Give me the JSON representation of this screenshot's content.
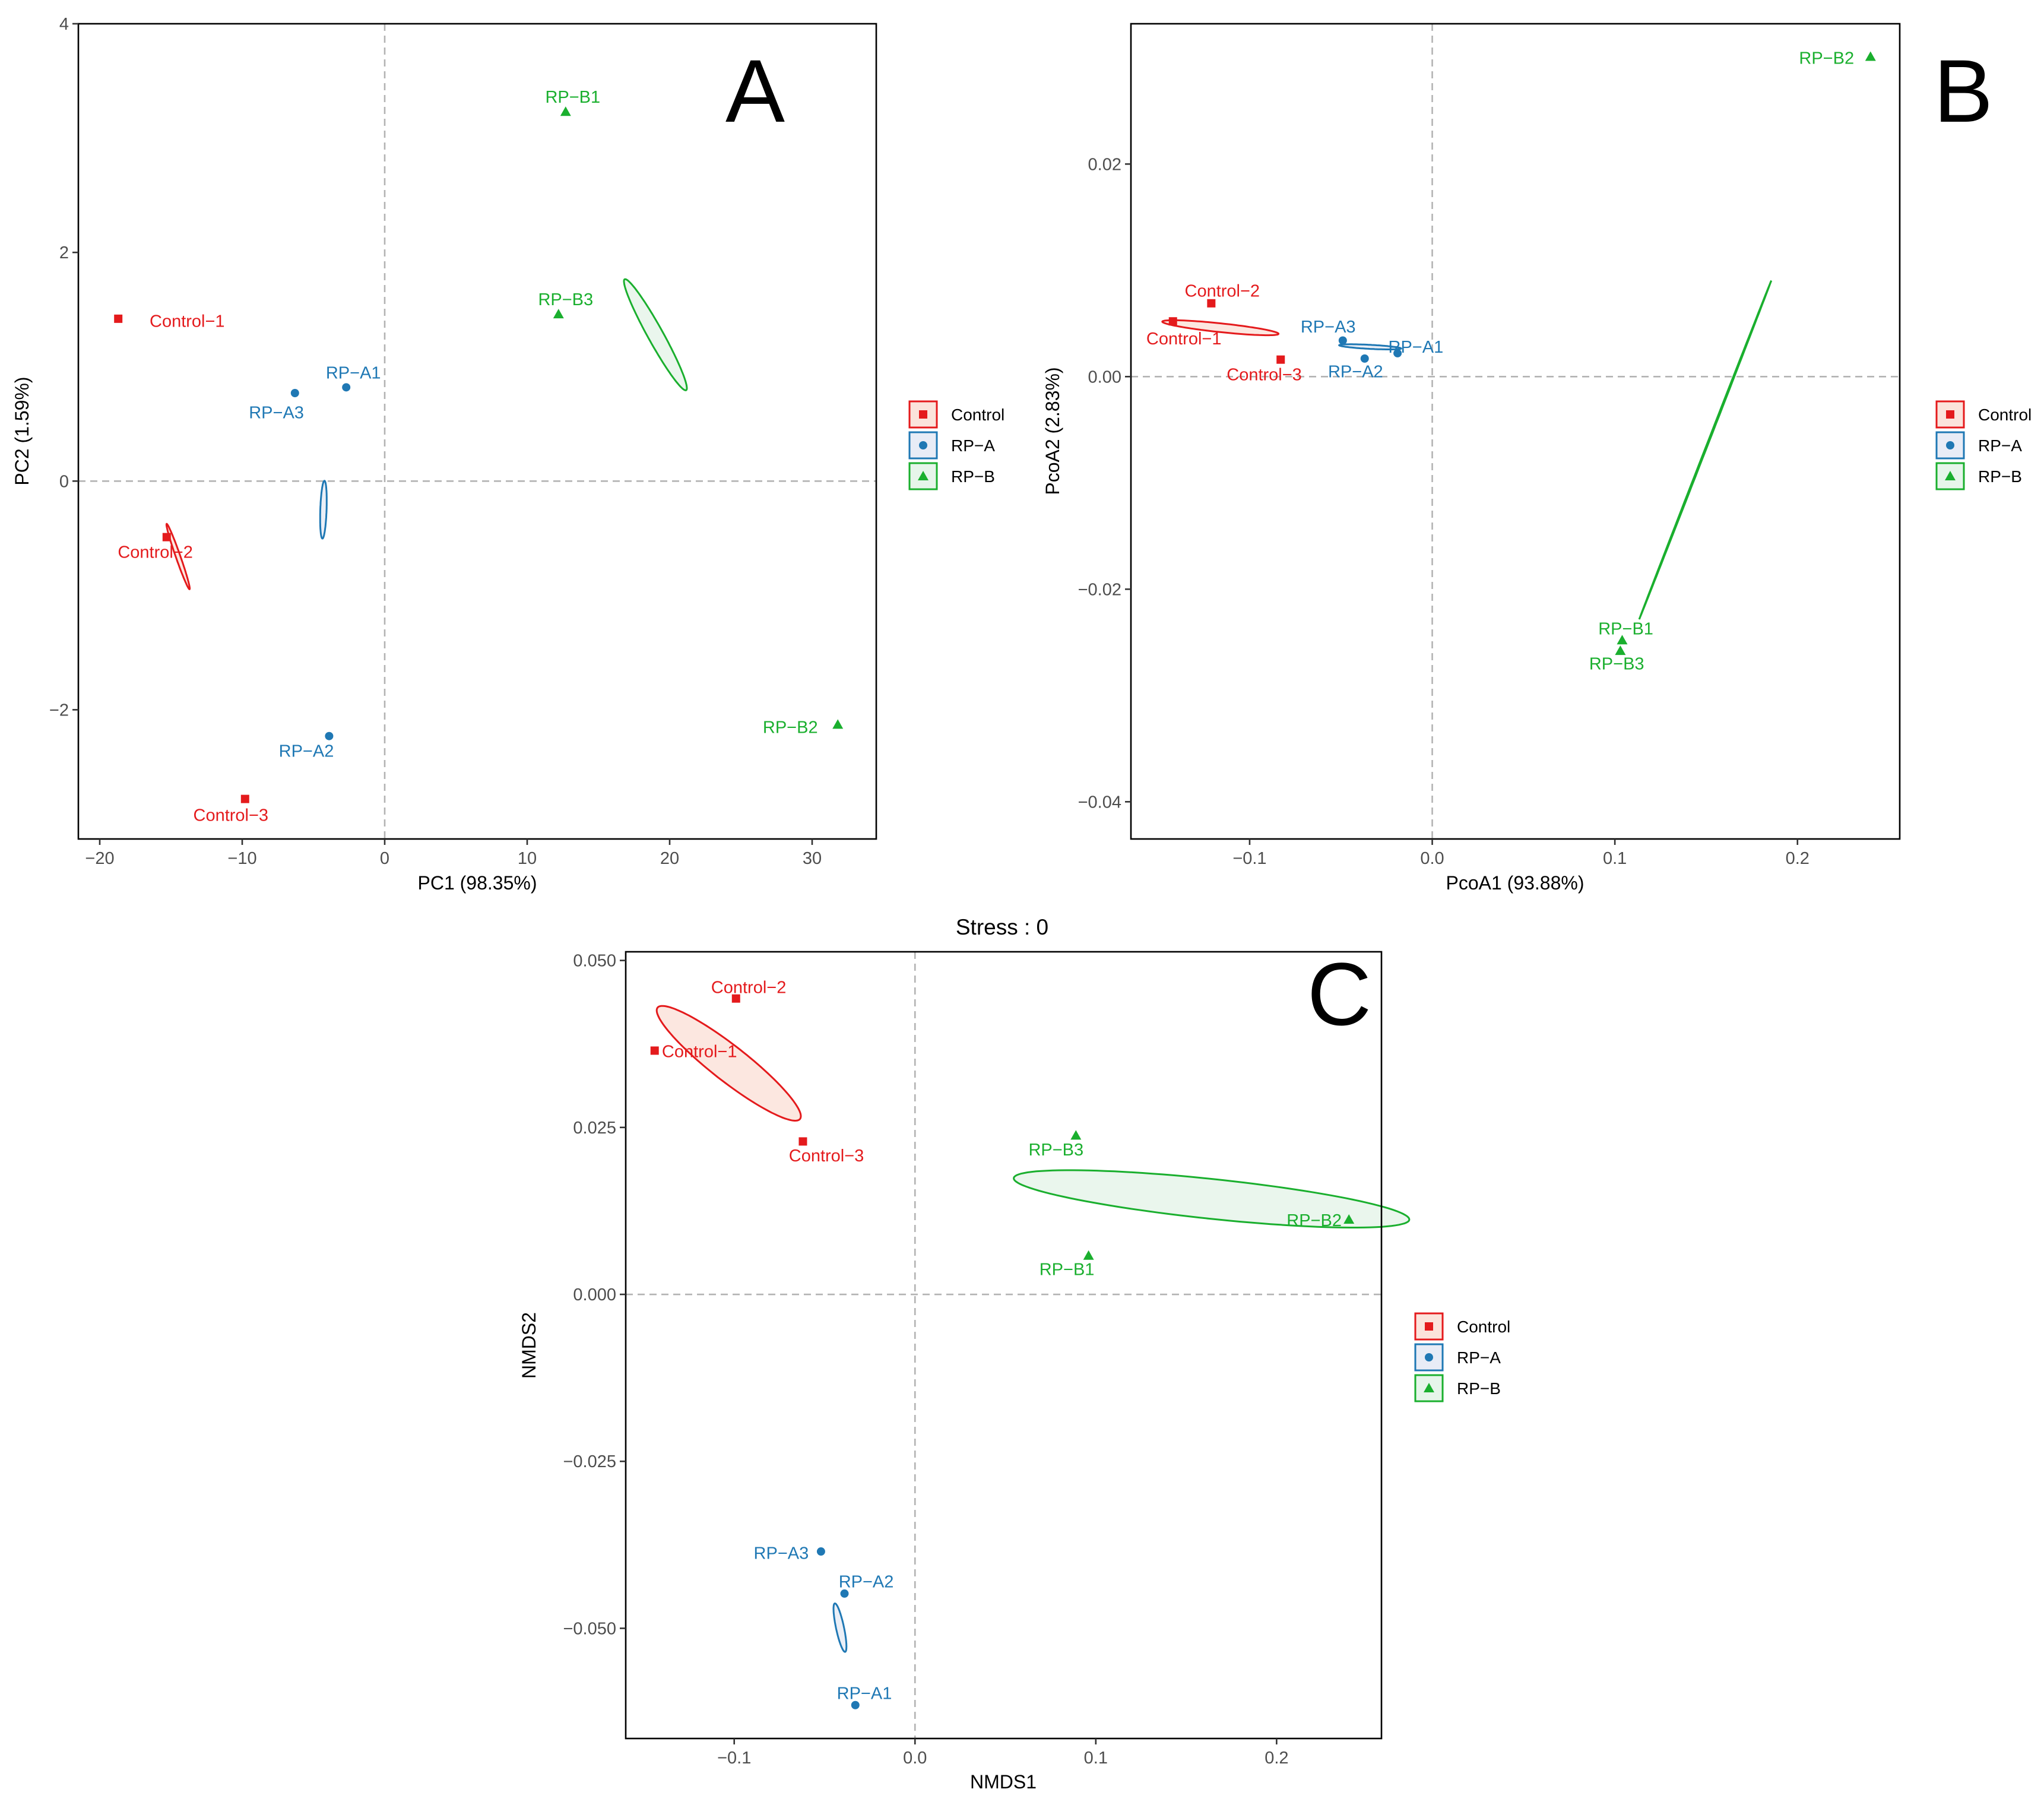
{
  "groups": [
    {
      "key": "Control",
      "label": "Control",
      "color": "#e41a1c",
      "fill": "#fbe3db",
      "marker": "square"
    },
    {
      "key": "RP-A",
      "label": "RP−A",
      "color": "#1f78b4",
      "fill": "#e8ecf6",
      "marker": "circle"
    },
    {
      "key": "RP-B",
      "label": "RP−B",
      "color": "#1aaf2e",
      "fill": "#e6f5ea",
      "marker": "triangle"
    }
  ],
  "chart_data": [
    {
      "type": "scatter",
      "panel": "A",
      "title": "",
      "xlabel": "PC1 (98.35%)",
      "ylabel": "PC2 (1.59%)",
      "xlim": [
        -21.5,
        34.5
      ],
      "ylim": [
        -3.13,
        4.0
      ],
      "xticks": [
        -20,
        -10,
        0,
        10,
        20,
        30
      ],
      "xtick_labels": [
        "−20",
        "−10",
        "0",
        "10",
        "20",
        "30"
      ],
      "yticks": [
        -2,
        0,
        2,
        4
      ],
      "ytick_labels": [
        "−2",
        "0",
        "2",
        "4"
      ],
      "points": [
        {
          "group": "Control",
          "label": "Control−1",
          "x": -18.7,
          "y": 1.42,
          "lx": 2.2,
          "ly": -0.02,
          "anchor": "start"
        },
        {
          "group": "Control",
          "label": "Control−2",
          "x": -15.3,
          "y": -0.49,
          "lx": -0.8,
          "ly": -0.13,
          "anchor": "middle"
        },
        {
          "group": "Control",
          "label": "Control−3",
          "x": -9.8,
          "y": -2.78,
          "lx": -1.0,
          "ly": -0.14,
          "anchor": "middle"
        },
        {
          "group": "RP-A",
          "label": "RP−A1",
          "x": -2.7,
          "y": 0.82,
          "lx": 0.5,
          "ly": 0.13,
          "anchor": "middle"
        },
        {
          "group": "RP-A",
          "label": "RP−A2",
          "x": -3.9,
          "y": -2.23,
          "lx": -1.6,
          "ly": -0.13,
          "anchor": "middle"
        },
        {
          "group": "RP-A",
          "label": "RP−A3",
          "x": -6.3,
          "y": 0.77,
          "lx": -1.3,
          "ly": -0.17,
          "anchor": "middle"
        },
        {
          "group": "RP-B",
          "label": "RP−B1",
          "x": 12.7,
          "y": 3.23,
          "lx": 0.5,
          "ly": 0.13,
          "anchor": "middle"
        },
        {
          "group": "RP-B",
          "label": "RP−B2",
          "x": 31.8,
          "y": -2.13,
          "lx": -1.4,
          "ly": -0.02,
          "anchor": "end"
        },
        {
          "group": "RP-B",
          "label": "RP−B3",
          "x": 12.2,
          "y": 1.46,
          "lx": 0.5,
          "ly": 0.13,
          "anchor": "middle"
        }
      ],
      "ellipses": [
        {
          "group": "Control",
          "cx": -14.5,
          "cy": -0.66,
          "rx": 2.43,
          "ry": 0.16,
          "angle_deg": -70.7
        },
        {
          "group": "RP-A",
          "cx": -4.3,
          "cy": -0.25,
          "rx": 2.03,
          "ry": 0.22,
          "angle_deg": 88.0
        },
        {
          "group": "RP-B",
          "cx": 19.0,
          "cy": 1.28,
          "rx": 4.45,
          "ry": 0.54,
          "angle_deg": -61.0
        }
      ],
      "legend": "right"
    },
    {
      "type": "scatter",
      "panel": "B",
      "title": "",
      "xlabel": "PcoA1 (93.88%)",
      "ylabel": "PcoA2 (2.83%)",
      "xlim": [
        -0.165,
        0.256
      ],
      "ylim": [
        -0.0435,
        0.0332
      ],
      "xticks": [
        -0.1,
        0.0,
        0.1,
        0.2
      ],
      "xtick_labels": [
        "−0.1",
        "0.0",
        "0.1",
        "0.2"
      ],
      "yticks": [
        -0.04,
        -0.02,
        0.0,
        0.02
      ],
      "ytick_labels": [
        "−0.04",
        "−0.02",
        "0.00",
        "0.02"
      ],
      "points": [
        {
          "group": "Control",
          "label": "Control−1",
          "x": -0.142,
          "y": 0.0052,
          "lx": 0.006,
          "ly": -0.0016,
          "anchor": "middle"
        },
        {
          "group": "Control",
          "label": "Control−2",
          "x": -0.121,
          "y": 0.0069,
          "lx": 0.006,
          "ly": 0.0012,
          "anchor": "middle"
        },
        {
          "group": "Control",
          "label": "Control−3",
          "x": -0.083,
          "y": 0.0016,
          "lx": -0.009,
          "ly": -0.0014,
          "anchor": "middle"
        },
        {
          "group": "RP-A",
          "label": "RP−A1",
          "x": -0.019,
          "y": 0.0022,
          "lx": 0.01,
          "ly": 0.0006,
          "anchor": "middle"
        },
        {
          "group": "RP-A",
          "label": "RP−A2",
          "x": -0.037,
          "y": 0.0017,
          "lx": -0.005,
          "ly": -0.0012,
          "anchor": "middle"
        },
        {
          "group": "RP-A",
          "label": "RP−A3",
          "x": -0.049,
          "y": 0.0034,
          "lx": -0.008,
          "ly": 0.0013,
          "anchor": "middle"
        },
        {
          "group": "RP-B",
          "label": "RP−B1",
          "x": 0.104,
          "y": -0.0248,
          "lx": 0.002,
          "ly": 0.0011,
          "anchor": "middle"
        },
        {
          "group": "RP-B",
          "label": "RP−B2",
          "x": 0.24,
          "y": 0.0301,
          "lx": -0.009,
          "ly": -0.0001,
          "anchor": "end"
        },
        {
          "group": "RP-B",
          "label": "RP−B3",
          "x": 0.103,
          "y": -0.0258,
          "lx": -0.002,
          "ly": -0.0012,
          "anchor": "middle"
        }
      ],
      "ellipses": [
        {
          "group": "Control",
          "cx": -0.116,
          "cy": 0.0046,
          "rx": 0.032,
          "ry": 0.0024,
          "angle_deg": -6.0
        },
        {
          "group": "RP-A",
          "cx": -0.034,
          "cy": 0.0028,
          "rx": 0.017,
          "ry": 0.0011,
          "angle_deg": -3.0
        },
        {
          "group": "RP-B",
          "cx": 0.1495,
          "cy": -0.0069,
          "rx": 0.0995,
          "ry": 0.0003,
          "angle_deg": 68.7
        }
      ],
      "legend": "right"
    },
    {
      "type": "scatter",
      "panel": "C",
      "title": "Stress : 0",
      "xlabel": "NMDS1",
      "ylabel": "NMDS2",
      "xlim": [
        -0.16,
        0.258
      ],
      "ylim": [
        -0.0665,
        0.0513
      ],
      "xticks": [
        -0.1,
        0.0,
        0.1,
        0.2
      ],
      "xtick_labels": [
        "−0.1",
        "0.0",
        "0.1",
        "0.2"
      ],
      "yticks": [
        -0.05,
        -0.025,
        0.0,
        0.025,
        0.05
      ],
      "ytick_labels": [
        "−0.050",
        "−0.025",
        "0.000",
        "0.025",
        "0.050"
      ],
      "points": [
        {
          "group": "Control",
          "label": "Control−1",
          "x": -0.144,
          "y": 0.0365,
          "lx": 0.004,
          "ly": -0.0001,
          "anchor": "start"
        },
        {
          "group": "Control",
          "label": "Control−2",
          "x": -0.099,
          "y": 0.0443,
          "lx": 0.007,
          "ly": 0.0017,
          "anchor": "middle"
        },
        {
          "group": "Control",
          "label": "Control−3",
          "x": -0.062,
          "y": 0.0229,
          "lx": 0.013,
          "ly": -0.0021,
          "anchor": "middle"
        },
        {
          "group": "RP-A",
          "label": "RP−A1",
          "x": -0.033,
          "y": -0.0615,
          "lx": 0.005,
          "ly": 0.0018,
          "anchor": "middle"
        },
        {
          "group": "RP-A",
          "label": "RP−A2",
          "x": -0.039,
          "y": -0.0448,
          "lx": 0.012,
          "ly": 0.0018,
          "anchor": "middle"
        },
        {
          "group": "RP-A",
          "label": "RP−A3",
          "x": -0.052,
          "y": -0.0385,
          "lx": -0.022,
          "ly": -0.0002,
          "anchor": "middle"
        },
        {
          "group": "RP-B",
          "label": "RP−B1",
          "x": 0.096,
          "y": 0.0058,
          "lx": -0.012,
          "ly": -0.002,
          "anchor": "middle"
        },
        {
          "group": "RP-B",
          "label": "RP−B2",
          "x": 0.24,
          "y": 0.0112,
          "lx": -0.004,
          "ly": -0.0001,
          "anchor": "end"
        },
        {
          "group": "RP-B",
          "label": "RP−B3",
          "x": 0.089,
          "y": 0.0238,
          "lx": -0.011,
          "ly": -0.0021,
          "anchor": "middle"
        }
      ],
      "ellipses": [
        {
          "group": "Control",
          "cx": -0.103,
          "cy": 0.0346,
          "rx": 0.05,
          "ry": 0.0098,
          "angle_deg": -38.0
        },
        {
          "group": "RP-A",
          "cx": -0.0415,
          "cy": -0.0499,
          "rx": 0.0137,
          "ry": 0.0022,
          "angle_deg": -78.0
        },
        {
          "group": "RP-B",
          "cx": 0.164,
          "cy": 0.0143,
          "rx": 0.11,
          "ry": 0.011,
          "angle_deg": -6.0
        }
      ],
      "legend": "right"
    }
  ]
}
